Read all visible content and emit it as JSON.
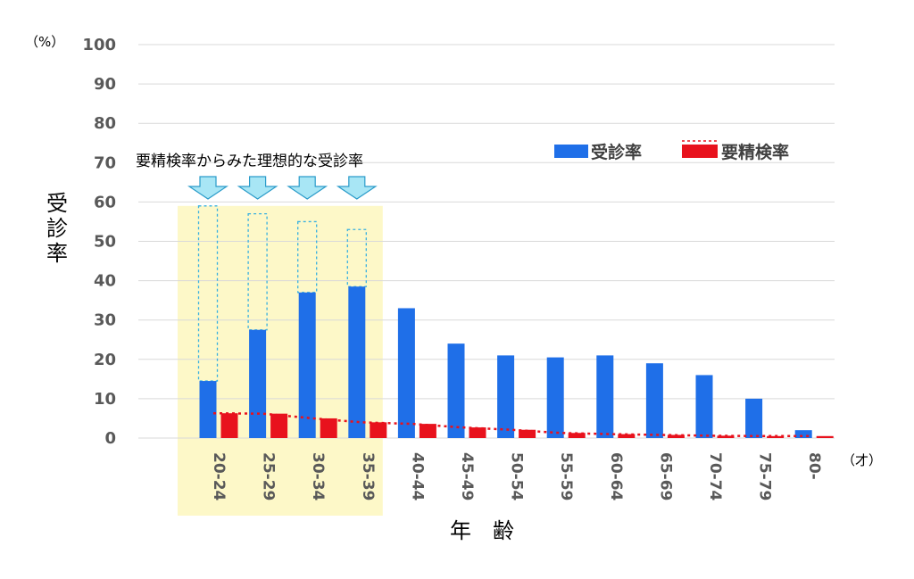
{
  "chart_data": {
    "type": "bar",
    "ylabel": "受診率",
    "xlabel": "年　齢",
    "y_unit": "（%）",
    "x_unit": "（才）",
    "ylim": [
      0,
      100
    ],
    "yticks": [
      "0",
      "10",
      "20",
      "30",
      "40",
      "50",
      "60",
      "70",
      "80",
      "90",
      "100"
    ],
    "grid": true,
    "legend_position": "top-right",
    "categories": [
      "20-24",
      "25-29",
      "30-34",
      "35-39",
      "40-44",
      "45-49",
      "50-54",
      "55-59",
      "60-64",
      "65-69",
      "70-74",
      "75-79",
      "80-"
    ],
    "series": [
      {
        "name": "受診率",
        "type": "bar",
        "color": "#1f6fe8",
        "values": [
          14.5,
          27.5,
          37,
          38.5,
          33,
          24,
          21,
          20.5,
          21,
          19,
          16,
          10,
          2
        ]
      },
      {
        "name": "要精検率",
        "type": "bar+trendline",
        "color": "#e8121d",
        "values": [
          6.3,
          6.2,
          5,
          4,
          3.6,
          2.7,
          2.1,
          1.3,
          1,
          0.8,
          0.6,
          0.5,
          0.5
        ]
      }
    ],
    "ideal_rates": {
      "label": "要精検率からみた理想的な受診率",
      "categories": [
        "20-24",
        "25-29",
        "30-34",
        "35-39"
      ],
      "values": [
        59,
        57,
        55,
        53
      ],
      "highlight_color": "#fdf8c8",
      "arrow_color": "#a8e6f5"
    }
  }
}
